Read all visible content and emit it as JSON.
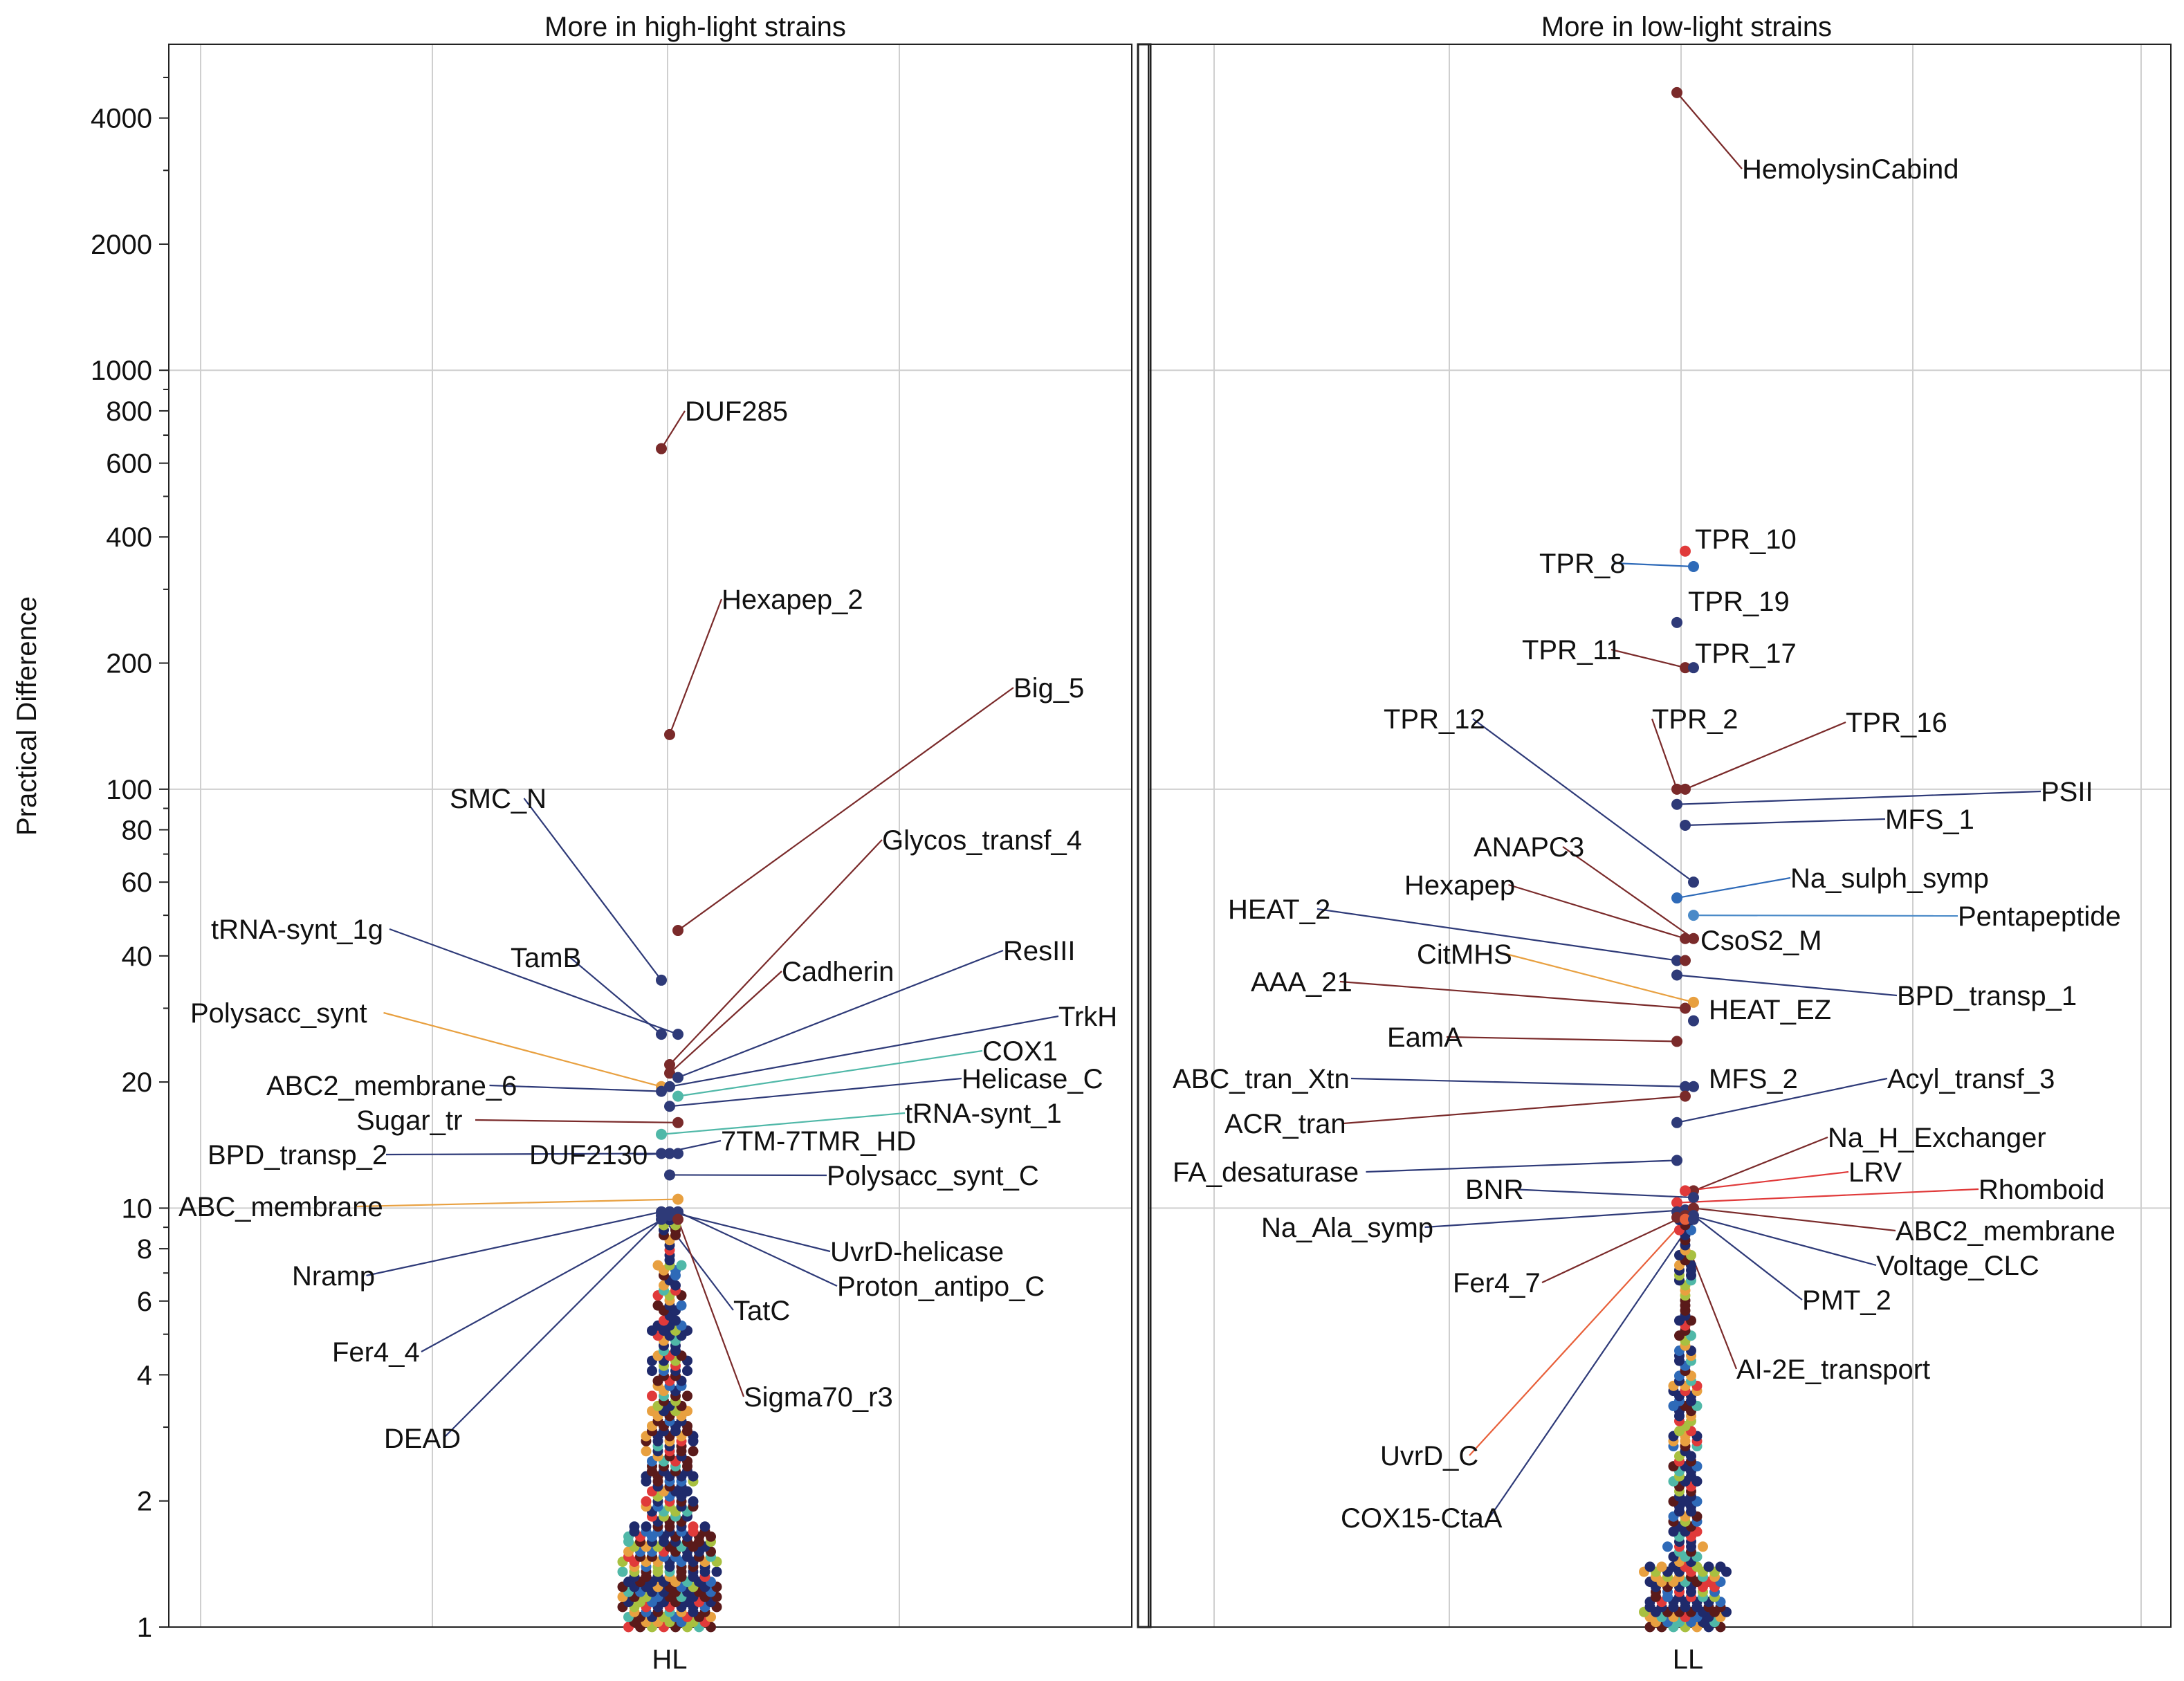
{
  "chart_data": {
    "type": "scatter",
    "ylabel": "Practical Difference",
    "yscale": "log",
    "ylim": [
      1,
      6000
    ],
    "y_ticks": [
      1,
      2,
      4,
      6,
      8,
      10,
      20,
      40,
      60,
      80,
      100,
      200,
      400,
      600,
      800,
      1000,
      2000,
      4000
    ],
    "grid": true,
    "panels": [
      {
        "title": "More in high-light strains",
        "xlabel": "HL",
        "labels": [
          {
            "text": "DUF285",
            "value": 650,
            "color": "#7a2a2a"
          },
          {
            "text": "Hexapep_2",
            "value": 135,
            "color": "#7a2a2a"
          },
          {
            "text": "Big_5",
            "value": 46,
            "color": "#7a2a2a"
          },
          {
            "text": "SMC_N",
            "value": 35,
            "color": "#2e3a78"
          },
          {
            "text": "Glycos_transf_4",
            "value": 22,
            "color": "#7a2a2a"
          },
          {
            "text": "tRNA-synt_1g",
            "value": 26,
            "color": "#2e3a78"
          },
          {
            "text": "TamB",
            "value": 26,
            "color": "#2e3a78"
          },
          {
            "text": "Cadherin",
            "value": 21,
            "color": "#7a2a2a"
          },
          {
            "text": "ResIII",
            "value": 20.5,
            "color": "#2e3a78"
          },
          {
            "text": "Polysacc_synt",
            "value": 19.5,
            "color": "#e8a040"
          },
          {
            "text": "TrkH",
            "value": 19.5,
            "color": "#2e3a78"
          },
          {
            "text": "COX1",
            "value": 18.5,
            "color": "#50b8a8"
          },
          {
            "text": "ABC2_membrane_6",
            "value": 19,
            "color": "#2e3a78"
          },
          {
            "text": "Helicase_C",
            "value": 17.5,
            "color": "#2e3a78"
          },
          {
            "text": "Sugar_tr",
            "value": 16,
            "color": "#7a2a2a"
          },
          {
            "text": "tRNA-synt_1",
            "value": 15,
            "color": "#50b8a8"
          },
          {
            "text": "BPD_transp_2",
            "value": 13.5,
            "color": "#2e3a78"
          },
          {
            "text": "DUF2130",
            "value": 13.5,
            "color": "#2e3a78"
          },
          {
            "text": "7TM-7TMR_HD",
            "value": 13.5,
            "color": "#2e3a78"
          },
          {
            "text": "Polysacc_synt_C",
            "value": 12,
            "color": "#2e3a78"
          },
          {
            "text": "ABC_membrane",
            "value": 10.5,
            "color": "#e8a040"
          },
          {
            "text": "Nramp",
            "value": 9.8,
            "color": "#2e3a78"
          },
          {
            "text": "UvrD-helicase",
            "value": 9.8,
            "color": "#2e3a78"
          },
          {
            "text": "Proton_antipo_C",
            "value": 9.8,
            "color": "#2e3a78"
          },
          {
            "text": "TatC",
            "value": 9.6,
            "color": "#2e3a78"
          },
          {
            "text": "Fer4_4",
            "value": 9.6,
            "color": "#2e3a78"
          },
          {
            "text": "Sigma70_r3",
            "value": 9.4,
            "color": "#7a2a2a"
          },
          {
            "text": "DEAD",
            "value": 9.4,
            "color": "#2e3a78"
          }
        ]
      },
      {
        "title": "More in low-light strains",
        "xlabel": "LL",
        "labels": [
          {
            "text": "HemolysinCabind",
            "value": 4600,
            "color": "#7a2a2a"
          },
          {
            "text": "TPR_10",
            "value": 370,
            "color": "#e03a3a"
          },
          {
            "text": "TPR_8",
            "value": 340,
            "color": "#2e6ab8"
          },
          {
            "text": "TPR_19",
            "value": 250,
            "color": "#2e3a78"
          },
          {
            "text": "TPR_11",
            "value": 195,
            "color": "#7a2a2a"
          },
          {
            "text": "TPR_17",
            "value": 195,
            "color": "#2e3a78"
          },
          {
            "text": "TPR_2",
            "value": 100,
            "color": "#7a2a2a"
          },
          {
            "text": "TPR_16",
            "value": 100,
            "color": "#7a2a2a"
          },
          {
            "text": "TPR_12",
            "value": 60,
            "color": "#2e3a78"
          },
          {
            "text": "PSII",
            "value": 92,
            "color": "#2e3a78"
          },
          {
            "text": "MFS_1",
            "value": 82,
            "color": "#2e3a78"
          },
          {
            "text": "ANAPC3",
            "value": 44,
            "color": "#7a2a2a"
          },
          {
            "text": "Na_sulph_symp",
            "value": 55,
            "color": "#2e6ab8"
          },
          {
            "text": "Hexapep",
            "value": 44,
            "color": "#7a2a2a"
          },
          {
            "text": "Pentapeptide",
            "value": 50,
            "color": "#4a8ac8"
          },
          {
            "text": "HEAT_2",
            "value": 39,
            "color": "#2e3a78"
          },
          {
            "text": "CsoS2_M",
            "value": 39,
            "color": "#7a2a2a"
          },
          {
            "text": "CitMHS",
            "value": 31,
            "color": "#e8a040"
          },
          {
            "text": "BPD_transp_1",
            "value": 36,
            "color": "#2e3a78"
          },
          {
            "text": "AAA_21",
            "value": 30,
            "color": "#7a2a2a"
          },
          {
            "text": "HEAT_EZ",
            "value": 28,
            "color": "#2e3a78"
          },
          {
            "text": "EamA",
            "value": 25,
            "color": "#7a2a2a"
          },
          {
            "text": "ABC_tran_Xtn",
            "value": 19.5,
            "color": "#2e3a78"
          },
          {
            "text": "MFS_2",
            "value": 19.5,
            "color": "#2e3a78"
          },
          {
            "text": "Acyl_transf_3",
            "value": 16,
            "color": "#2e3a78"
          },
          {
            "text": "ACR_tran",
            "value": 18.5,
            "color": "#7a2a2a"
          },
          {
            "text": "Na_H_Exchanger",
            "value": 11,
            "color": "#7a2a2a"
          },
          {
            "text": "FA_desaturase",
            "value": 13,
            "color": "#2e3a78"
          },
          {
            "text": "LRV",
            "value": 11,
            "color": "#e03a3a"
          },
          {
            "text": "BNR",
            "value": 10.6,
            "color": "#2e3a78"
          },
          {
            "text": "Rhomboid",
            "value": 10.3,
            "color": "#e03a3a"
          },
          {
            "text": "Na_Ala_symp",
            "value": 9.9,
            "color": "#2e3a78"
          },
          {
            "text": "ABC2_membrane",
            "value": 10,
            "color": "#7a2a2a"
          },
          {
            "text": "Voltage_CLC",
            "value": 9.8,
            "color": "#2e3a78"
          },
          {
            "text": "Fer4_7",
            "value": 9.6,
            "color": "#7a2a2a"
          },
          {
            "text": "PMT_2",
            "value": 9.6,
            "color": "#2e3a78"
          },
          {
            "text": "AI-2E_transport",
            "value": 9.5,
            "color": "#7a2a2a"
          },
          {
            "text": "UvrD_C",
            "value": 9.4,
            "color": "#e8603a"
          },
          {
            "text": "COX15-CtaA",
            "value": 9.4,
            "color": "#2e3a78"
          }
        ]
      }
    ]
  }
}
